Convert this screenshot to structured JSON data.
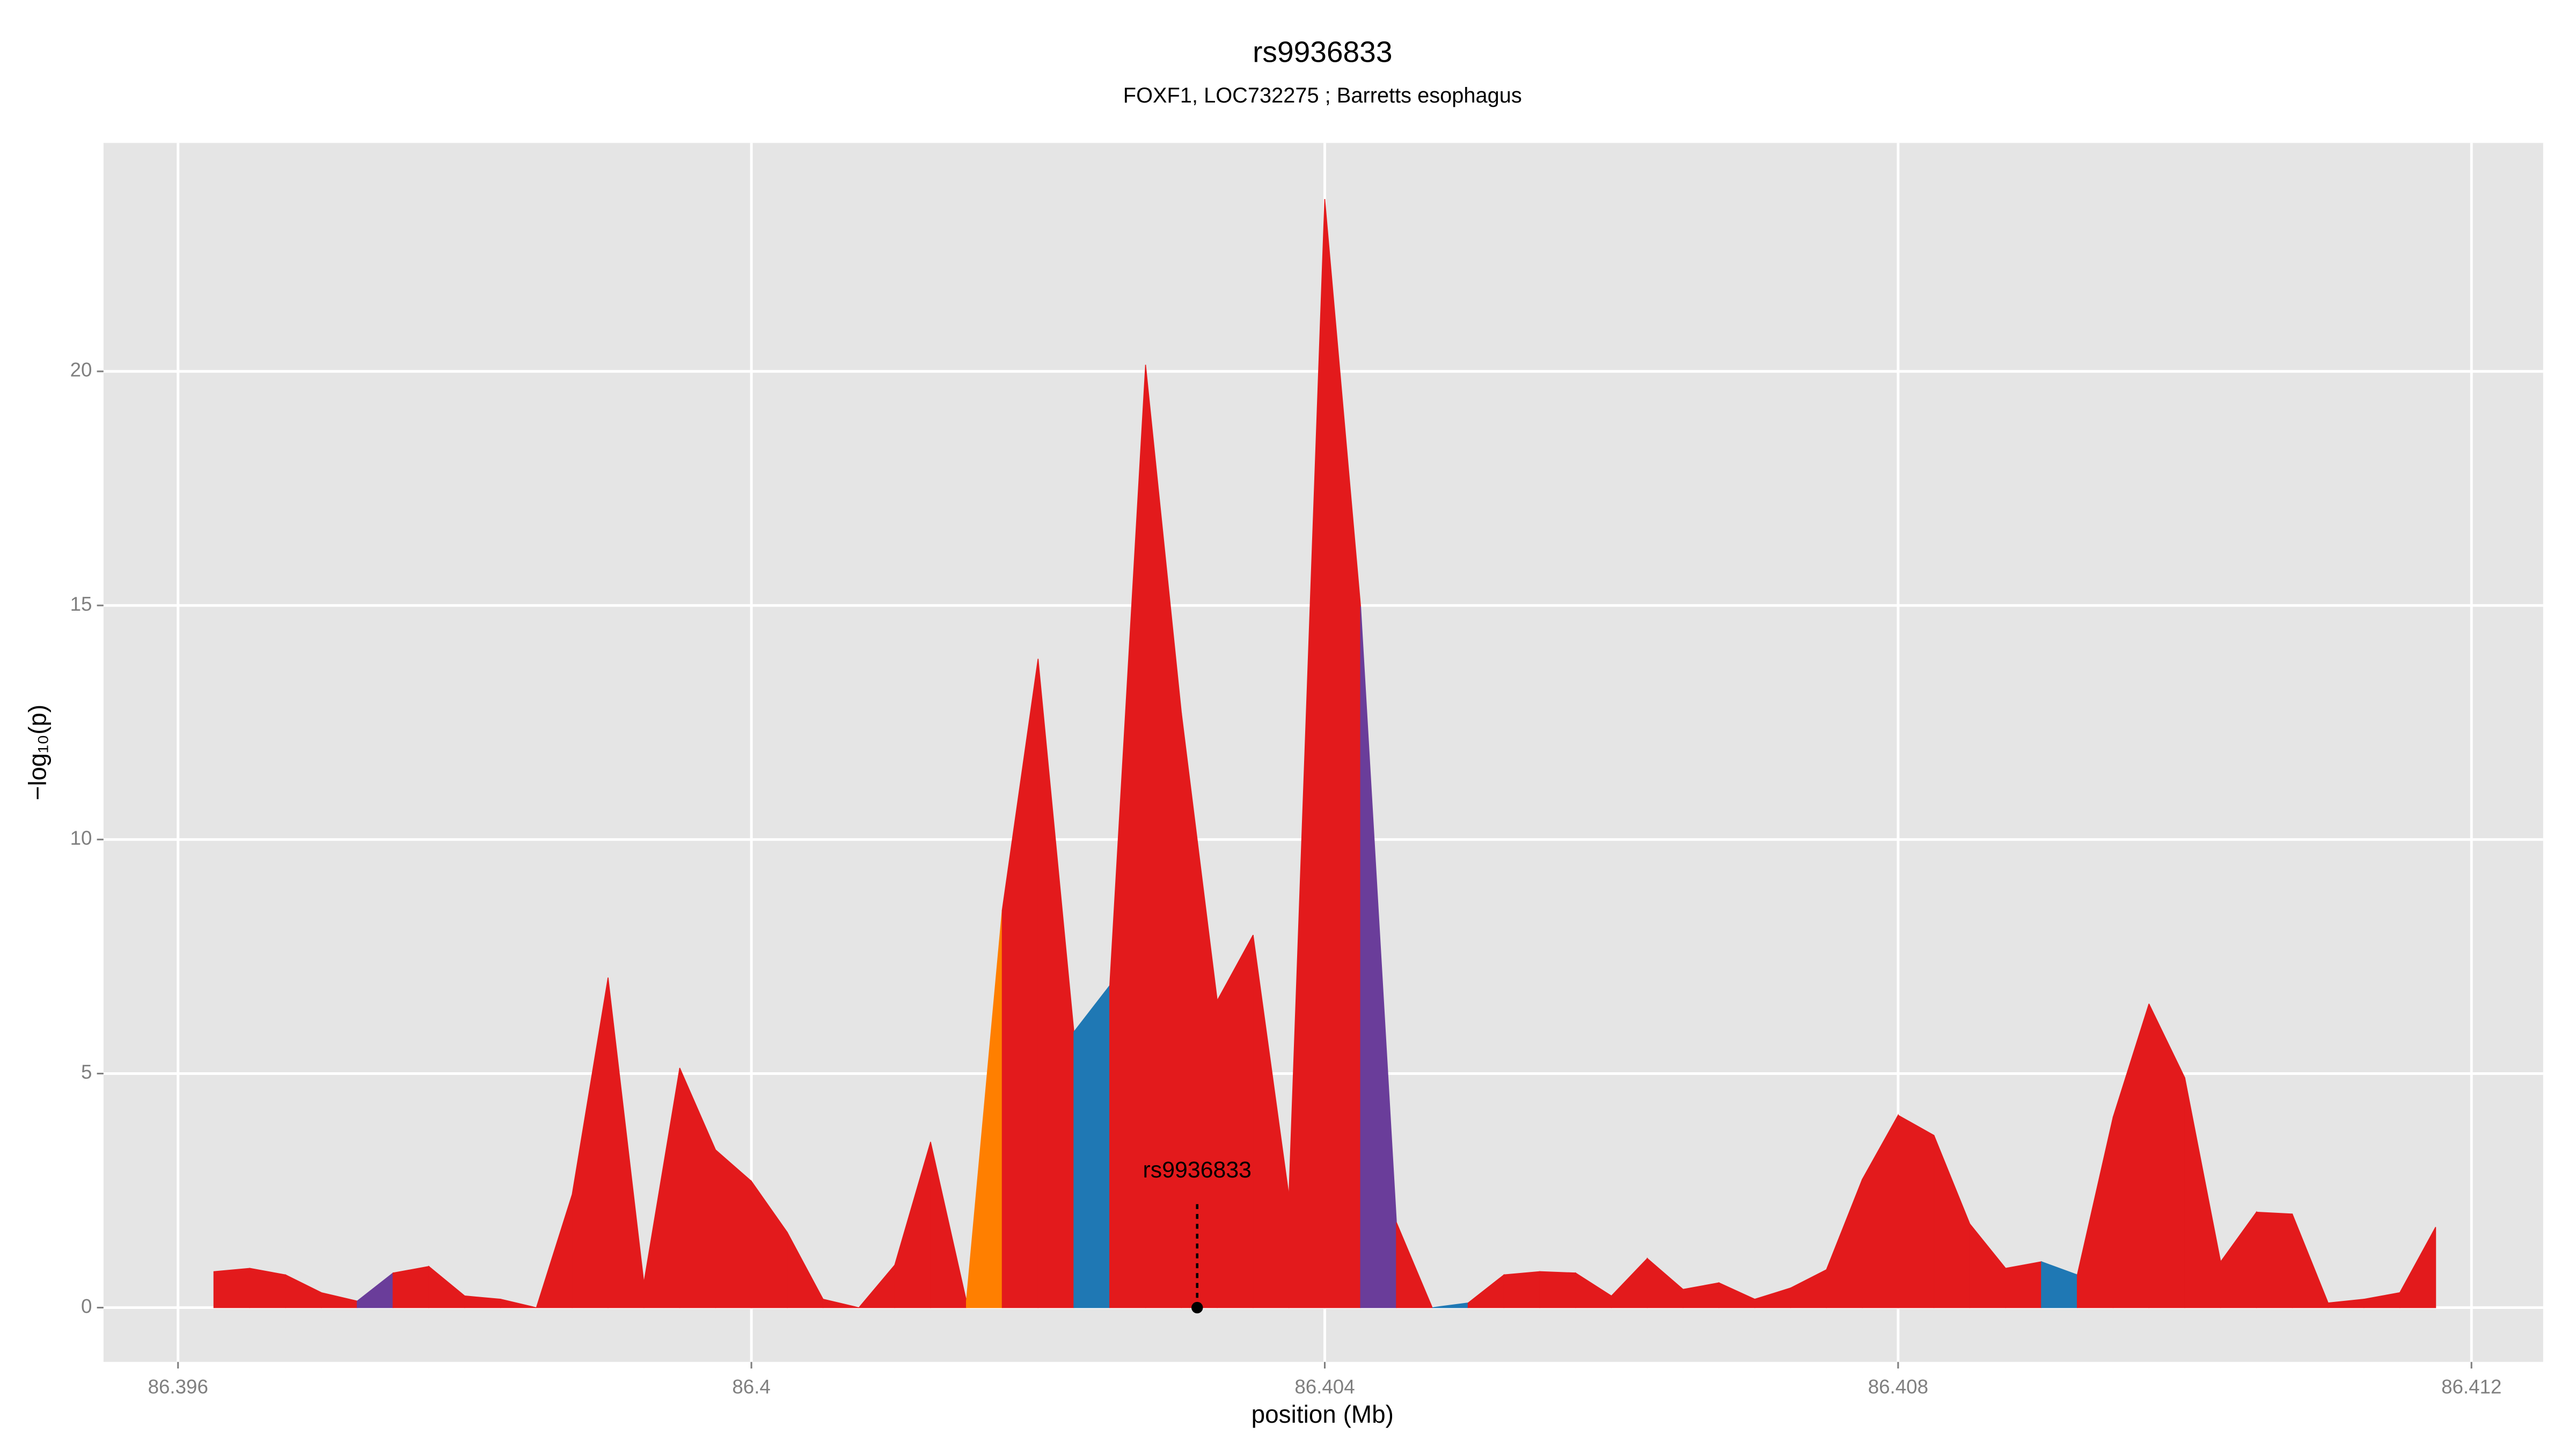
{
  "chart_data": {
    "type": "area",
    "title": "rs9936833",
    "subtitle": "FOXF1, LOC732275 ; Barretts esophagus",
    "xlabel": "position (Mb)",
    "ylabel": "−log₁₀(p)",
    "x": [
      86.39625,
      86.3965,
      86.39675,
      86.397,
      86.39725,
      86.3975,
      86.39775,
      86.398,
      86.39825,
      86.3985,
      86.39875,
      86.399,
      86.39925,
      86.3995,
      86.39975,
      86.4,
      86.40025,
      86.4005,
      86.40075,
      86.401,
      86.40125,
      86.4015,
      86.40175,
      86.402,
      86.40225,
      86.4025,
      86.40275,
      86.403,
      86.40325,
      86.4035,
      86.40375,
      86.404,
      86.40425,
      86.4045,
      86.40475,
      86.405,
      86.40525,
      86.4055,
      86.40575,
      86.406,
      86.40625,
      86.4065,
      86.40675,
      86.407,
      86.40725,
      86.4075,
      86.40775,
      86.408,
      86.40825,
      86.4085,
      86.40875,
      86.409,
      86.40925,
      86.4095,
      86.40975,
      86.41,
      86.41025,
      86.4105,
      86.41075,
      86.411,
      86.41125,
      86.4115,
      86.41175
    ],
    "values": [
      0.77,
      0.84,
      0.7,
      0.32,
      0.14,
      0.74,
      0.88,
      0.25,
      0.18,
      0,
      2.42,
      7.05,
      0.53,
      5.12,
      3.37,
      2.7,
      1.61,
      0.18,
      0,
      0.91,
      3.54,
      0.14,
      8.49,
      13.86,
      5.89,
      6.88,
      20.14,
      12.7,
      6.56,
      7.96,
      2.39,
      23.68,
      14.98,
      1.82,
      0,
      0.1,
      0.7,
      0.77,
      0.74,
      0.25,
      1.05,
      0.39,
      0.53,
      0.18,
      0.42,
      0.81,
      2.74,
      4.11,
      3.68,
      1.79,
      0.84,
      0.98,
      0.7,
      4.07,
      6.49,
      4.91,
      0.98,
      2.04,
      2,
      0.1,
      0.18,
      0.32,
      1.72
    ],
    "segment_colors": [
      "#e31a1c",
      "#e31a1c",
      "#e31a1c",
      "#e31a1c",
      "#6a3d9a",
      "#e31a1c",
      "#e31a1c",
      "#e31a1c",
      "#e31a1c",
      "#e31a1c",
      "#e31a1c",
      "#e31a1c",
      "#e31a1c",
      "#e31a1c",
      "#e31a1c",
      "#e31a1c",
      "#e31a1c",
      "#e31a1c",
      "#e31a1c",
      "#e31a1c",
      "#e31a1c",
      "#ff7f00",
      "#e31a1c",
      "#e31a1c",
      "#1f78b4",
      "#e31a1c",
      "#e31a1c",
      "#e31a1c",
      "#e31a1c",
      "#e31a1c",
      "#e31a1c",
      "#e31a1c",
      "#6a3d9a",
      "#e31a1c",
      "#1f78b4",
      "#e31a1c",
      "#e31a1c",
      "#e31a1c",
      "#e31a1c",
      "#e31a1c",
      "#e31a1c",
      "#e31a1c",
      "#e31a1c",
      "#e31a1c",
      "#e31a1c",
      "#e31a1c",
      "#e31a1c",
      "#e31a1c",
      "#e31a1c",
      "#e31a1c",
      "#e31a1c",
      "#1f78b4",
      "#e31a1c",
      "#e31a1c",
      "#e31a1c",
      "#e31a1c",
      "#e31a1c",
      "#e31a1c",
      "#e31a1c",
      "#e31a1c",
      "#e31a1c",
      "#e31a1c"
    ],
    "annotation": {
      "label": "rs9936833",
      "x": 86.40311,
      "y": 0
    },
    "xlim": [
      86.39548,
      86.4125
    ],
    "ylim": [
      -1.16,
      24.88
    ],
    "xticks": [
      86.396,
      86.4,
      86.404,
      86.408,
      86.412
    ],
    "yticks": [
      0,
      5,
      10,
      15,
      20
    ],
    "grid": true
  }
}
